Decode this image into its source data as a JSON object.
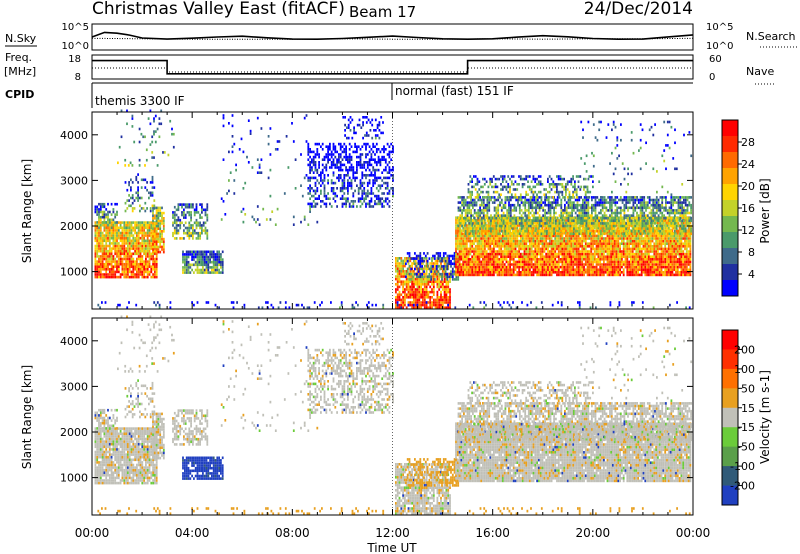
{
  "header": {
    "title": "Christmas Valley East (fitACF)",
    "beam": "Beam 17",
    "date": "24/Dec/2014"
  },
  "panels": {
    "nsky_label": "N.Sky",
    "nsearch_label": "N.Search",
    "freq_label_line1": "Freq.",
    "freq_label_line2": "[MHz]",
    "nave_label": "Nave",
    "cpid_label": "CPID",
    "cpid_segments": [
      "themis 3300 IF",
      "normal (fast) 151 IF"
    ],
    "cpid_switch_hour": 12.0
  },
  "chart_data": [
    {
      "id": "noise",
      "type": "line",
      "ylabel_left": "N.Sky",
      "ylabel_right": "N.Search",
      "left_ticks": [
        "10^5",
        "10^0"
      ],
      "right_ticks": [
        "10^5",
        "10^0"
      ],
      "scale": "log",
      "series": [
        {
          "x": [
            0,
            0.5,
            1,
            1.5,
            2,
            3,
            4,
            5,
            6,
            7,
            8,
            9,
            10,
            11,
            12,
            13,
            14,
            15,
            16,
            17,
            18,
            19,
            20,
            21,
            22,
            23,
            24
          ],
          "y": [
            2.5,
            3.2,
            3.0,
            2.9,
            2.6,
            2.4,
            2.3,
            2.2,
            2.3,
            2.2,
            2.3,
            2.4,
            2.3,
            2.2,
            2.3,
            2.2,
            2.3,
            2.4,
            2.3,
            2.3,
            2.4,
            2.3,
            2.3,
            2.4,
            2.3,
            2.4,
            2.6
          ]
        },
        {
          "x": [
            0,
            2,
            4,
            6,
            8,
            10,
            12,
            14,
            16,
            18,
            20,
            22,
            24
          ],
          "y": [
            2.2,
            2.1,
            2.0,
            2.0,
            2.0,
            2.1,
            2.0,
            2.0,
            2.1,
            2.0,
            2.1,
            2.1,
            2.2
          ]
        }
      ]
    },
    {
      "id": "freq",
      "type": "line",
      "ylabel_left": "Freq. [MHz]",
      "ylabel_right": "Nave",
      "left_ticks": [
        "18",
        "8"
      ],
      "right_ticks": [
        "60",
        "0"
      ],
      "series": [
        {
          "name": "Freq",
          "x": [
            0,
            3,
            3,
            15,
            15,
            24
          ],
          "y": [
            16.2,
            16.2,
            9.6,
            9.6,
            16.2,
            16.2
          ]
        },
        {
          "name": "Nave",
          "x": [
            0,
            3,
            3,
            15,
            15,
            24
          ],
          "y": [
            27,
            27,
            15,
            15,
            27,
            27
          ]
        }
      ]
    },
    {
      "id": "power",
      "type": "heatmap",
      "xlabel": "Time UT",
      "ylabel": "Slant Range [km]",
      "xlim": [
        0,
        24
      ],
      "ylim": [
        180,
        4500
      ],
      "xticks": [
        "00:00",
        "04:00",
        "08:00",
        "12:00",
        "16:00",
        "20:00",
        "00:00"
      ],
      "yticks": [
        1000,
        2000,
        3000,
        4000
      ],
      "colorbar": {
        "label": "Power [dB]",
        "ticks": [
          28,
          24,
          20,
          16,
          12,
          8,
          4
        ],
        "range": [
          0,
          30
        ],
        "colors": [
          "#0000ff",
          "#2030a0",
          "#3f6b8a",
          "#4a9a6a",
          "#74b84f",
          "#c3d22a",
          "#ffd400",
          "#ffa300",
          "#ff6a00",
          "#ff2a00",
          "#ff0000"
        ]
      }
    },
    {
      "id": "velocity",
      "type": "heatmap",
      "xlabel": "Time UT",
      "ylabel": "Slant Range [km]",
      "xlim": [
        0,
        24
      ],
      "ylim": [
        180,
        4500
      ],
      "xticks": [
        "00:00",
        "04:00",
        "08:00",
        "12:00",
        "16:00",
        "20:00",
        "00:00"
      ],
      "yticks": [
        1000,
        2000,
        3000,
        4000
      ],
      "colorbar": {
        "label": "Velocity [m s-1]",
        "ticks": [
          "200",
          "100",
          "50",
          "15",
          "-15",
          "-50",
          "-100",
          "-200"
        ],
        "colors": [
          "#2040c0",
          "#305a78",
          "#5a9f4a",
          "#6bcc3a",
          "#c0c0b8",
          "#e8a020",
          "#ff7000",
          "#ff3000",
          "#ff0000"
        ]
      }
    }
  ]
}
